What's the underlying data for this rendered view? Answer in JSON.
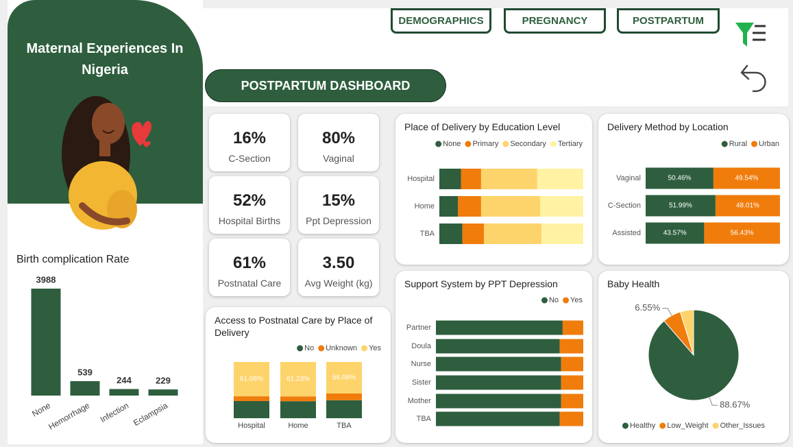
{
  "header": {
    "title": "Maternal Experiences In Nigeria"
  },
  "nav": [
    "DEMOGRAPHICS",
    "PREGNANCY",
    "POSTPARTUM"
  ],
  "dashboard_title": "POSTPARTUM DASHBOARD",
  "kpis": [
    {
      "value": "16%",
      "label": "C-Section"
    },
    {
      "value": "80%",
      "label": "Vaginal"
    },
    {
      "value": "52%",
      "label": "Hospital Births"
    },
    {
      "value": "15%",
      "label": "Ppt Depression"
    },
    {
      "value": "61%",
      "label": "Postnatal Care"
    },
    {
      "value": "3.50",
      "label": "Avg Weight (kg)"
    }
  ],
  "chart_data": [
    {
      "type": "bar",
      "title": "Birth complication Rate",
      "categories": [
        "None",
        "Hemorrhage",
        "Infection",
        "Eclampsia"
      ],
      "values": [
        3988,
        539,
        244,
        229
      ],
      "color": "#2e5e3e"
    },
    {
      "type": "bar",
      "title": "Place of Delivery by Education Level",
      "stacked": true,
      "orientation": "horizontal",
      "legend": "top",
      "categories": [
        "Hospital",
        "Home",
        "TBA"
      ],
      "series": [
        {
          "name": "None",
          "color": "#2e5e3e",
          "values": [
            15,
            13,
            16
          ]
        },
        {
          "name": "Primary",
          "color": "#f07c0c",
          "values": [
            14,
            16,
            15
          ]
        },
        {
          "name": "Secondary",
          "color": "#fdd36b",
          "values": [
            39,
            41,
            40
          ]
        },
        {
          "name": "Tertiary",
          "color": "#fff2a3",
          "values": [
            32,
            30,
            29
          ]
        }
      ]
    },
    {
      "type": "bar",
      "title": "Delivery Method by Location",
      "stacked": true,
      "orientation": "horizontal",
      "legend": "top",
      "categories": [
        "Vaginal",
        "C-Section",
        "Assisted"
      ],
      "series": [
        {
          "name": "Rural",
          "color": "#2e5e3e",
          "values": [
            50.46,
            51.99,
            43.57
          ],
          "value_labels": [
            "50.46%",
            "51.99%",
            "43.57%"
          ]
        },
        {
          "name": "Urban",
          "color": "#f07c0c",
          "values": [
            49.54,
            48.01,
            56.43
          ],
          "value_labels": [
            "49.54%",
            "48.01%",
            "56.43%"
          ]
        }
      ]
    },
    {
      "type": "bar",
      "title": "Access to Postnatal Care by Place of Delivery",
      "stacked": true,
      "orientation": "vertical",
      "legend": "top",
      "categories": [
        "Hospital",
        "Home",
        "TBA"
      ],
      "series": [
        {
          "name": "No",
          "color": "#2e5e3e",
          "values": [
            30.5,
            30.27,
            31.92
          ]
        },
        {
          "name": "Unknown",
          "color": "#f07c0c",
          "values": [
            8.44,
            8.5,
            12
          ]
        },
        {
          "name": "Yes",
          "color": "#fdd36b",
          "values": [
            61.06,
            61.23,
            56.08
          ],
          "value_labels": [
            "61.06%",
            "61.23%",
            "56.08%"
          ]
        }
      ]
    },
    {
      "type": "bar",
      "title": "Support System by PPT Depression",
      "stacked": true,
      "orientation": "horizontal",
      "legend": "top",
      "categories": [
        "Partner",
        "Doula",
        "Nurse",
        "Sister",
        "Mother",
        "TBA"
      ],
      "series": [
        {
          "name": "No",
          "color": "#2e5e3e",
          "values": [
            86,
            84,
            85,
            85,
            85,
            84
          ]
        },
        {
          "name": "Yes",
          "color": "#f07c0c",
          "values": [
            14,
            16,
            15,
            15,
            15,
            16
          ]
        }
      ]
    },
    {
      "type": "pie",
      "title": "Baby Health",
      "legend": "bottom",
      "categories": [
        "Healthy",
        "Low_Weight",
        "Other_Issues"
      ],
      "values": [
        88.67,
        6.55,
        4.78
      ],
      "value_labels": [
        "88.67%",
        "6.55%",
        null
      ],
      "colors": [
        "#2e5e3e",
        "#f07c0c",
        "#fdd36b"
      ]
    }
  ]
}
